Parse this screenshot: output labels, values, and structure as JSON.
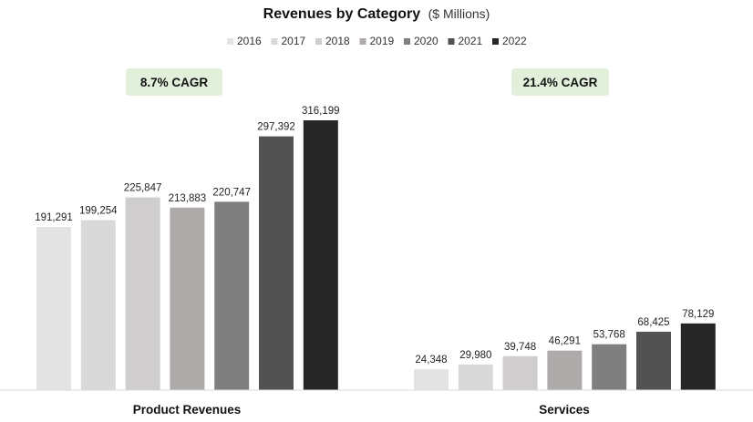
{
  "chart_data": {
    "type": "bar",
    "title": "Revenues by Category",
    "subtitle": "($ Millions)",
    "categories": [
      "Product Revenues",
      "Services"
    ],
    "series": [
      {
        "name": "2016",
        "color": "#e3e3e3",
        "values": [
          191291,
          24348
        ],
        "labels": [
          "191,291",
          "24,348"
        ]
      },
      {
        "name": "2017",
        "color": "#d9d9d9",
        "values": [
          199254,
          29980
        ],
        "labels": [
          "199,254",
          "29,980"
        ]
      },
      {
        "name": "2018",
        "color": "#cfcdcd",
        "values": [
          225847,
          39748
        ],
        "labels": [
          "225,847",
          "39,748"
        ]
      },
      {
        "name": "2019",
        "color": "#aeaaaa",
        "values": [
          213883,
          46291
        ],
        "labels": [
          "213,883",
          "46,291"
        ]
      },
      {
        "name": "2020",
        "color": "#7f7f7f",
        "values": [
          220747,
          53768
        ],
        "labels": [
          "220,747",
          "53,768"
        ]
      },
      {
        "name": "2021",
        "color": "#525252",
        "values": [
          297392,
          68425
        ],
        "labels": [
          "297,392",
          "68,425"
        ]
      },
      {
        "name": "2022",
        "color": "#262626",
        "values": [
          316199,
          78129
        ],
        "labels": [
          "316,199",
          "78,129"
        ]
      }
    ],
    "annotations": [
      "8.7% CAGR",
      "21.4% CAGR"
    ],
    "annotation_color": "#e2efda",
    "ylim": [
      0,
      316199
    ],
    "legend_position": "top-center",
    "grid": false
  }
}
